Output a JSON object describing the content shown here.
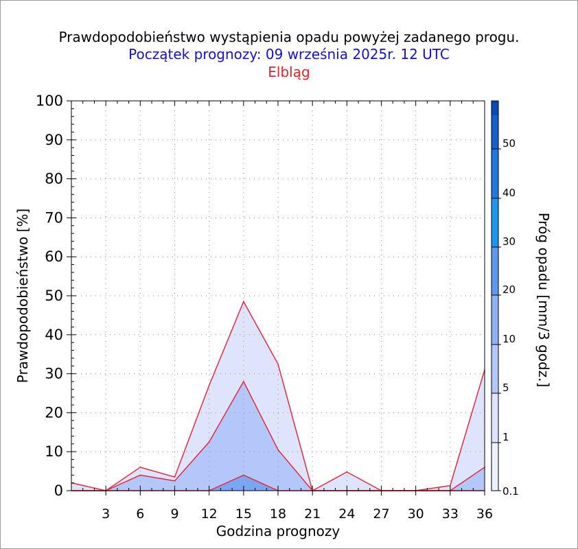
{
  "header": {
    "title": "Prawdopodobieństwo wystąpienia opadu powyżej zadanego progu.",
    "subtitle": "Początek prognozy: 09 września 2025r. 12 UTC",
    "location": "Elbląg"
  },
  "chart_data": {
    "type": "area",
    "xlabel": "Godzina prognozy",
    "ylabel": "Prawdopodobieństwo [%]",
    "xlim": [
      0,
      36
    ],
    "ylim": [
      0,
      100
    ],
    "x": [
      0,
      3,
      6,
      9,
      12,
      15,
      18,
      21,
      24,
      27,
      30,
      33,
      36
    ],
    "x_tick_labels": [
      "3",
      "6",
      "9",
      "12",
      "15",
      "18",
      "21",
      "24",
      "27",
      "30",
      "33",
      "36"
    ],
    "y_ticks": [
      0,
      10,
      20,
      30,
      40,
      50,
      60,
      70,
      80,
      90,
      100
    ],
    "grid": true,
    "line_color": "#e8283c",
    "series": [
      {
        "threshold": 0.1,
        "color": "#dde4fb",
        "values": [
          2,
          0,
          6,
          3.5,
          27,
          48.5,
          32.5,
          0,
          4.8,
          0,
          0,
          1.3,
          31
        ]
      },
      {
        "threshold": 1,
        "color": "#b3c7fa",
        "values": [
          0,
          0,
          4,
          2.5,
          12.5,
          28,
          10.5,
          0,
          0,
          0,
          0,
          0,
          6
        ]
      },
      {
        "threshold": 5,
        "color": "#7aa6f4",
        "values": [
          0,
          0,
          0,
          0,
          0,
          4,
          0,
          0,
          0,
          0,
          0,
          0,
          0
        ]
      }
    ],
    "colorbar": {
      "label": "Próg opadu [mm/3 godz.]",
      "levels": [
        "0.1",
        "1",
        "5",
        "10",
        "20",
        "30",
        "40",
        "50"
      ],
      "colors": [
        "#eef2fe",
        "#dde4fb",
        "#b3c7fa",
        "#8fb2f6",
        "#5c98f0",
        "#1e96f0",
        "#1f78e0",
        "#1560d0",
        "#0c48b8",
        "#062e90"
      ]
    }
  }
}
